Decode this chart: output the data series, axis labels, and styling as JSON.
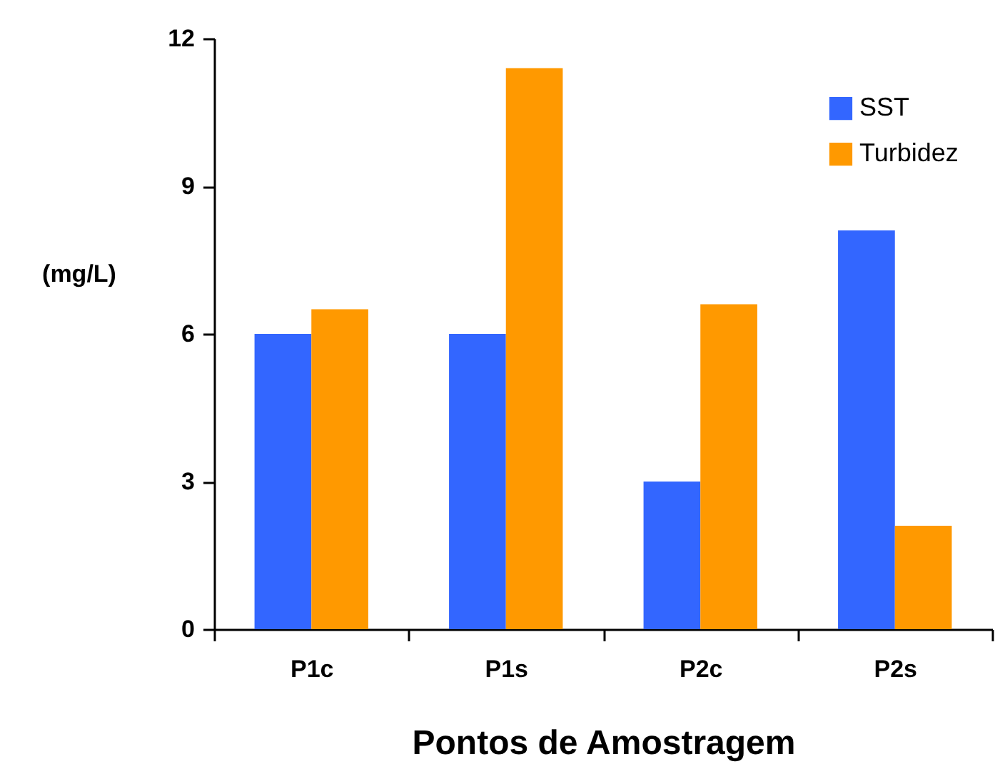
{
  "chart_data": {
    "type": "bar",
    "xlabel": "Pontos de Amostragem",
    "ylabel": "(mg/L)",
    "categories": [
      "P1c",
      "P1s",
      "P2c",
      "P2s"
    ],
    "series": [
      {
        "name": "SST",
        "color": "#3366ff",
        "values": [
          6,
          6,
          3,
          8.1
        ]
      },
      {
        "name": "Turbidez",
        "color": "#ff9900",
        "values": [
          6.5,
          11.4,
          6.6,
          2.1
        ]
      }
    ],
    "ylim": [
      0,
      12
    ],
    "yticks": [
      0,
      3,
      6,
      9,
      12
    ],
    "grid": false,
    "legend": "top right"
  }
}
